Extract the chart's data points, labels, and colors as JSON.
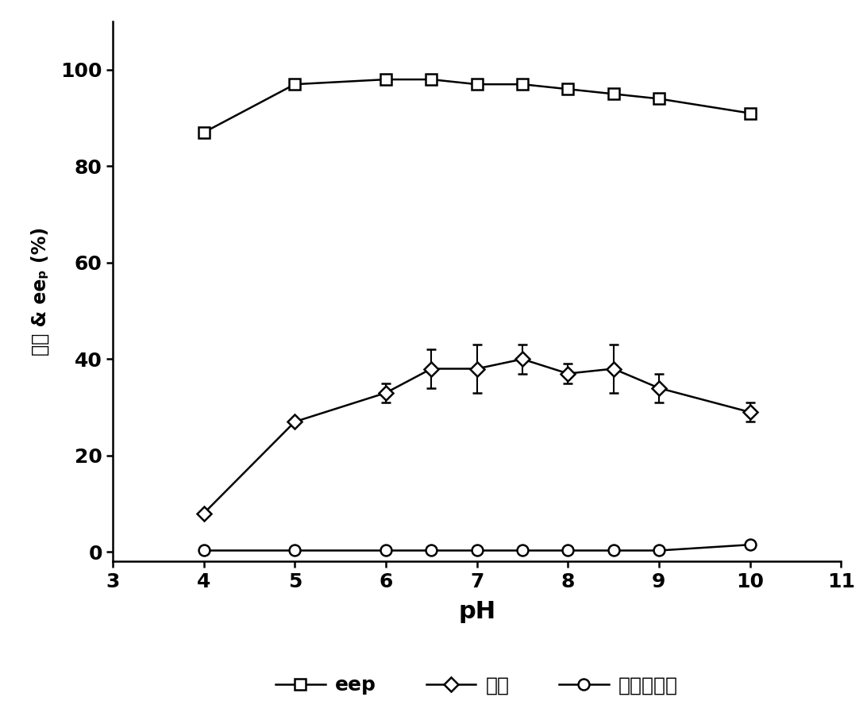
{
  "eep_x": [
    4,
    5,
    6,
    6.5,
    7,
    7.5,
    8,
    8.5,
    9,
    10
  ],
  "eep_y": [
    87,
    97,
    98,
    98,
    97,
    97,
    96,
    95,
    94,
    91
  ],
  "yield_x": [
    4,
    5,
    6,
    6.5,
    7,
    7.5,
    8,
    8.5,
    9,
    10
  ],
  "yield_y": [
    8,
    27,
    33,
    38,
    38,
    40,
    37,
    38,
    34,
    29
  ],
  "yield_yerr": [
    0,
    0,
    2,
    4,
    5,
    3,
    2,
    5,
    3,
    2
  ],
  "hydro_x": [
    4,
    5,
    6,
    6.5,
    7,
    7.5,
    8,
    8.5,
    9,
    10
  ],
  "hydro_y": [
    0.3,
    0.3,
    0.3,
    0.3,
    0.3,
    0.3,
    0.3,
    0.3,
    0.3,
    1.5
  ],
  "xlim": [
    3,
    11
  ],
  "ylim": [
    -2,
    110
  ],
  "xticks": [
    3,
    4,
    5,
    6,
    7,
    8,
    9,
    10,
    11
  ],
  "yticks": [
    0,
    20,
    40,
    60,
    80,
    100
  ],
  "xlabel": "pH",
  "ylabel_line1": "产率 & eeₚ (%)",
  "legend_labels": [
    "eep",
    "产率",
    "自发水解率"
  ],
  "line_color": "#000000",
  "bg_color": "#ffffff"
}
